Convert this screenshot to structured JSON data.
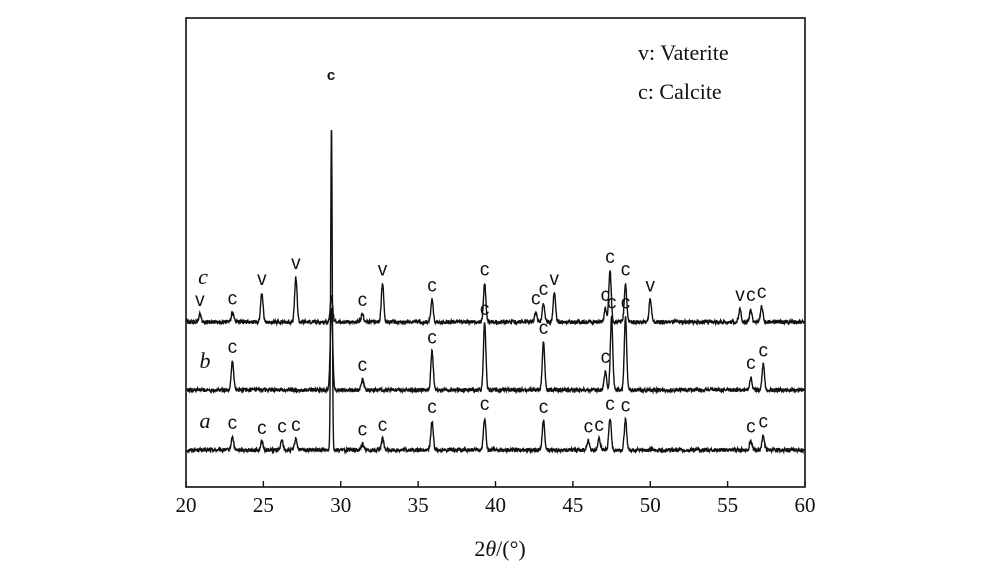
{
  "chart_data": {
    "type": "line",
    "xlabel_prefix": "2",
    "xlabel_symbol": "θ",
    "xlabel_suffix": "/(°)",
    "ylabel": "",
    "xlim": [
      20,
      60
    ],
    "xticks": [
      "20",
      "25",
      "30",
      "35",
      "40",
      "45",
      "50",
      "55",
      "60"
    ],
    "legend": {
      "position": "top-right",
      "entries": [
        {
          "symbol": "v",
          "name": "Vaterite"
        },
        {
          "symbol": "c",
          "name": "Calcite"
        }
      ]
    },
    "main_peak_label": "c",
    "series": [
      {
        "name": "a",
        "peaks": [
          {
            "x": 23.0,
            "h": 0.4,
            "label": "c"
          },
          {
            "x": 24.9,
            "h": 0.25,
            "label": "c"
          },
          {
            "x": 26.2,
            "h": 0.3,
            "label": "c"
          },
          {
            "x": 27.1,
            "h": 0.35,
            "label": "c"
          },
          {
            "x": 29.4,
            "h": 10.2,
            "label": ""
          },
          {
            "x": 31.4,
            "h": 0.2,
            "label": "c"
          },
          {
            "x": 32.7,
            "h": 0.35,
            "label": "c"
          },
          {
            "x": 35.9,
            "h": 0.9,
            "label": "c"
          },
          {
            "x": 39.3,
            "h": 1.0,
            "label": "c"
          },
          {
            "x": 43.1,
            "h": 0.9,
            "label": "c"
          },
          {
            "x": 46.0,
            "h": 0.3,
            "label": "c"
          },
          {
            "x": 46.7,
            "h": 0.35,
            "label": "c"
          },
          {
            "x": 47.4,
            "h": 1.0,
            "label": "c"
          },
          {
            "x": 48.4,
            "h": 0.95,
            "label": "c"
          },
          {
            "x": 56.5,
            "h": 0.3,
            "label": "c"
          },
          {
            "x": 57.3,
            "h": 0.45,
            "label": "c"
          }
        ]
      },
      {
        "name": "b",
        "peaks": [
          {
            "x": 23.0,
            "h": 0.9,
            "label": "c"
          },
          {
            "x": 29.4,
            "h": 2.6,
            "label": ""
          },
          {
            "x": 31.4,
            "h": 0.35,
            "label": "c"
          },
          {
            "x": 35.9,
            "h": 1.2,
            "label": "c"
          },
          {
            "x": 39.3,
            "h": 2.1,
            "label": "c"
          },
          {
            "x": 43.1,
            "h": 1.5,
            "label": "c"
          },
          {
            "x": 47.1,
            "h": 0.6,
            "label": "c"
          },
          {
            "x": 47.5,
            "h": 2.3,
            "label": "c"
          },
          {
            "x": 48.4,
            "h": 2.3,
            "label": "c"
          },
          {
            "x": 56.5,
            "h": 0.4,
            "label": "c"
          },
          {
            "x": 57.3,
            "h": 0.8,
            "label": "c"
          }
        ]
      },
      {
        "name": "c",
        "peaks": [
          {
            "x": 20.9,
            "h": 0.25,
            "label": "v"
          },
          {
            "x": 23.0,
            "h": 0.3,
            "label": "c"
          },
          {
            "x": 24.9,
            "h": 0.9,
            "label": "v"
          },
          {
            "x": 27.1,
            "h": 1.4,
            "label": "v"
          },
          {
            "x": 29.4,
            "h": 0.8,
            "label": ""
          },
          {
            "x": 31.4,
            "h": 0.25,
            "label": "c"
          },
          {
            "x": 32.7,
            "h": 1.2,
            "label": "v"
          },
          {
            "x": 35.9,
            "h": 0.7,
            "label": "c"
          },
          {
            "x": 39.3,
            "h": 1.2,
            "label": "c"
          },
          {
            "x": 42.6,
            "h": 0.3,
            "label": "c"
          },
          {
            "x": 43.1,
            "h": 0.6,
            "label": "c"
          },
          {
            "x": 43.8,
            "h": 0.9,
            "label": "v"
          },
          {
            "x": 47.1,
            "h": 0.4,
            "label": "c"
          },
          {
            "x": 47.4,
            "h": 1.6,
            "label": "c"
          },
          {
            "x": 48.4,
            "h": 1.2,
            "label": "c"
          },
          {
            "x": 50.0,
            "h": 0.7,
            "label": "v"
          },
          {
            "x": 55.8,
            "h": 0.4,
            "label": "v"
          },
          {
            "x": 56.5,
            "h": 0.4,
            "label": "c"
          },
          {
            "x": 57.2,
            "h": 0.5,
            "label": "c"
          }
        ]
      }
    ]
  }
}
